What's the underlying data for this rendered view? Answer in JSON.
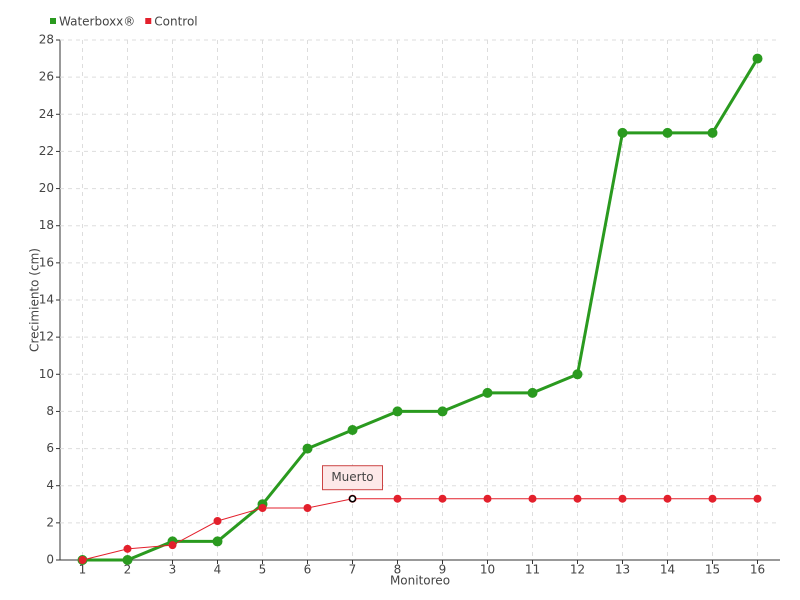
{
  "chart_data": {
    "type": "line",
    "x_label": "Monitoreo",
    "y_label": "Crecimiento (cm)",
    "x": [
      1,
      2,
      3,
      4,
      5,
      6,
      7,
      8,
      9,
      10,
      11,
      12,
      13,
      14,
      15,
      16
    ],
    "series": [
      {
        "name": "Waterboxx®",
        "color": "#2a9a1f",
        "values": [
          0,
          0,
          1,
          1,
          3,
          6,
          7,
          8,
          8,
          9,
          9,
          10,
          23,
          23,
          23,
          27
        ]
      },
      {
        "name": "Control",
        "color": "#e3202c",
        "values": [
          0,
          0.6,
          0.8,
          2.1,
          2.8,
          2.8,
          3.3,
          3.3,
          3.3,
          3.3,
          3.3,
          3.3,
          3.3,
          3.3,
          3.3,
          3.3
        ]
      }
    ],
    "annotations": [
      {
        "text": "Muerto",
        "series": 1,
        "index": 6
      }
    ],
    "xlim": [
      0.5,
      16.5
    ],
    "xticks": [
      1,
      2,
      3,
      4,
      5,
      6,
      7,
      8,
      9,
      10,
      11,
      12,
      13,
      14,
      15,
      16
    ],
    "ylim": [
      0,
      28
    ],
    "yticks": [
      0,
      2,
      4,
      6,
      8,
      10,
      12,
      14,
      16,
      18,
      20,
      22,
      24,
      26,
      28
    ],
    "grid": true,
    "legend": "top-left"
  }
}
